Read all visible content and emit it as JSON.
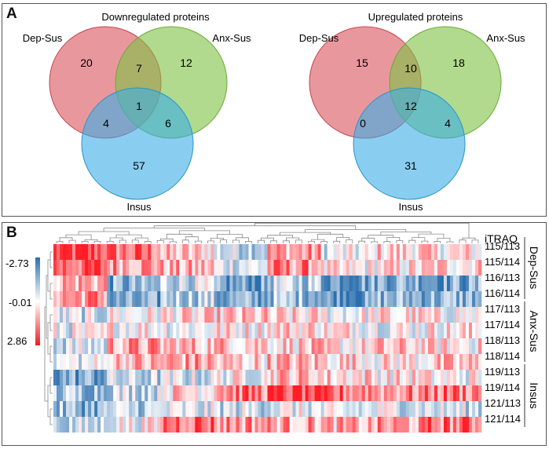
{
  "panel_a": {
    "letter": "A",
    "venns": [
      {
        "title": "Downregulated proteins",
        "set_labels": [
          "Dep-Sus",
          "Anx-Sus",
          "Insus"
        ],
        "regions": {
          "a_only": "20",
          "ab": "7",
          "b_only": "12",
          "abc": "1",
          "ac": "4",
          "bc": "6",
          "c_only": "57"
        }
      },
      {
        "title": "Upregulated proteins",
        "set_labels": [
          "Dep-Sus",
          "Anx-Sus",
          "Insus"
        ],
        "regions": {
          "a_only": "15",
          "ab": "10",
          "b_only": "18",
          "abc": "12",
          "ac": "0",
          "bc": "4",
          "c_only": "31"
        }
      }
    ],
    "colors": {
      "dep_sus": "#d9535b",
      "anx_sus": "#7dc243",
      "insus": "#3aaee6"
    }
  },
  "panel_b": {
    "letter": "B",
    "column_header": "iTRAQ",
    "rows": [
      "115/113",
      "115/114",
      "116/113",
      "116/114",
      "117/113",
      "117/114",
      "118/113",
      "118/114",
      "119/113",
      "119/114",
      "121/113",
      "121/114"
    ],
    "groups": [
      "Dep-Sus",
      "Anx-Sus",
      "Insus"
    ],
    "legend": {
      "top": "-2.73",
      "mid": "-0.01",
      "bottom": "2.86"
    },
    "colors": {
      "low": "#2b6fae",
      "mid": "#ffffff",
      "high": "#ee1c25"
    }
  }
}
